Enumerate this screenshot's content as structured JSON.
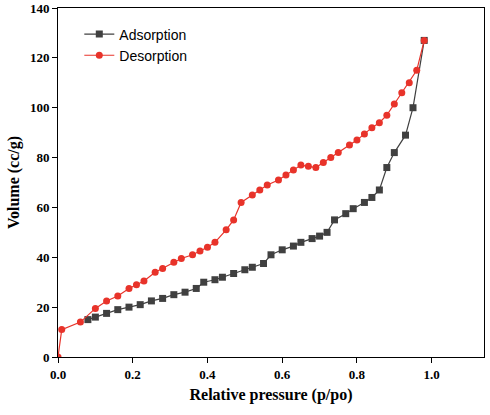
{
  "chart_data": {
    "type": "line",
    "x_label": "Relative pressure (p/po)",
    "y_label": "Volume (cc/g)",
    "xlim": [
      0,
      1.14
    ],
    "xticks": [
      {
        "value": 0,
        "label": "0.0"
      },
      0.2,
      0.4,
      0.6,
      0.8,
      {
        "value": 1,
        "label": "1.0"
      }
    ],
    "ylim": [
      0,
      140
    ],
    "yticks": [
      0,
      20,
      40,
      60,
      80,
      100,
      120,
      140
    ],
    "grid": false,
    "legend": "top left",
    "series": [
      {
        "name": "Adsorption",
        "color": "#404040",
        "marker": "square",
        "line_style": "solid",
        "x": [
          0.08,
          0.1,
          0.13,
          0.16,
          0.19,
          0.22,
          0.25,
          0.28,
          0.31,
          0.34,
          0.37,
          0.39,
          0.42,
          0.44,
          0.47,
          0.5,
          0.52,
          0.55,
          0.57,
          0.6,
          0.63,
          0.65,
          0.68,
          0.7,
          0.72,
          0.74,
          0.77,
          0.79,
          0.82,
          0.84,
          0.86,
          0.88,
          0.9,
          0.93,
          0.95,
          0.98
        ],
        "values": [
          15,
          16,
          17.5,
          19,
          20,
          21,
          22.5,
          23.5,
          25,
          26,
          27.5,
          30,
          31,
          32,
          33.5,
          35,
          36,
          37.5,
          41,
          43,
          44.5,
          46,
          47.5,
          48.5,
          50,
          55,
          57.5,
          59.5,
          62,
          64,
          67,
          76,
          82,
          89,
          100,
          127
        ]
      },
      {
        "name": "Desorption",
        "color": "#e8332a",
        "marker": "circle",
        "line_style": "solid",
        "x": [
          0.0,
          0.01,
          0.06,
          0.1,
          0.13,
          0.16,
          0.19,
          0.21,
          0.23,
          0.26,
          0.28,
          0.31,
          0.33,
          0.36,
          0.38,
          0.4,
          0.42,
          0.45,
          0.47,
          0.49,
          0.52,
          0.54,
          0.56,
          0.59,
          0.61,
          0.63,
          0.65,
          0.67,
          0.69,
          0.71,
          0.73,
          0.75,
          0.78,
          0.8,
          0.82,
          0.84,
          0.86,
          0.88,
          0.9,
          0.92,
          0.94,
          0.96,
          0.98
        ],
        "values": [
          0,
          11,
          14,
          19.5,
          22.5,
          24.5,
          27.5,
          29,
          30.5,
          34,
          35.5,
          38,
          39.5,
          41,
          42.5,
          44,
          46,
          51,
          55,
          62,
          65,
          67,
          69,
          71,
          73,
          75,
          77,
          76.5,
          76,
          78,
          80,
          82,
          85,
          87,
          89.5,
          92,
          94,
          97,
          101.5,
          106,
          110,
          115,
          127
        ]
      }
    ]
  }
}
